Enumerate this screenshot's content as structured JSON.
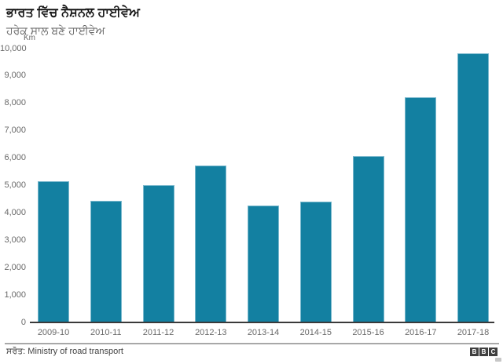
{
  "header": {
    "title": "ਭਾਰਤ ਵਿੱਚ ਨੈਸ਼ਨਲ ਹਾਈਵੇਅ",
    "subtitle": "ਹਰੇਕ ਸਾਲ ਬਣੇ ਹਾਈਵੇਅ"
  },
  "chart_data": {
    "type": "bar",
    "title": "ਭਾਰਤ ਵਿੱਚ ਨੈਸ਼ਨਲ ਹਾਈਵੇਅ",
    "subtitle": "ਹਰੇਕ ਸਾਲ ਬਣੇ ਹਾਈਵੇਅ",
    "unit_label": "Km",
    "categories": [
      "2009-10",
      "2010-11",
      "2011-12",
      "2012-13",
      "2013-14",
      "2014-15",
      "2015-16",
      "2016-17",
      "2017-18"
    ],
    "values": [
      5150,
      4450,
      5013,
      5732,
      4260,
      4410,
      6061,
      8231,
      9829
    ],
    "xlabel": "",
    "ylabel": "Km",
    "ylim": [
      0,
      10000
    ],
    "ytick_interval": 1000,
    "ytick_labels": [
      "0",
      "1,000",
      "2,000",
      "3,000",
      "4,000",
      "5,000",
      "6,000",
      "7,000",
      "8,000",
      "9,000",
      "10,000"
    ],
    "grid": false,
    "legend": "none",
    "bar_color": "#1380a1",
    "bar_edge_color": "#7ab8cd",
    "baseline_color": "#3a3a3a"
  },
  "footer": {
    "source": "ਸਰੋਤ: Ministry of road transport",
    "logo_letters": [
      "B",
      "B",
      "C"
    ]
  },
  "colors": {
    "background": "#ffffff",
    "title_text": "#141414",
    "subtitle_text": "#616161",
    "axis_text": "#696969",
    "accent": "#1380a1"
  }
}
